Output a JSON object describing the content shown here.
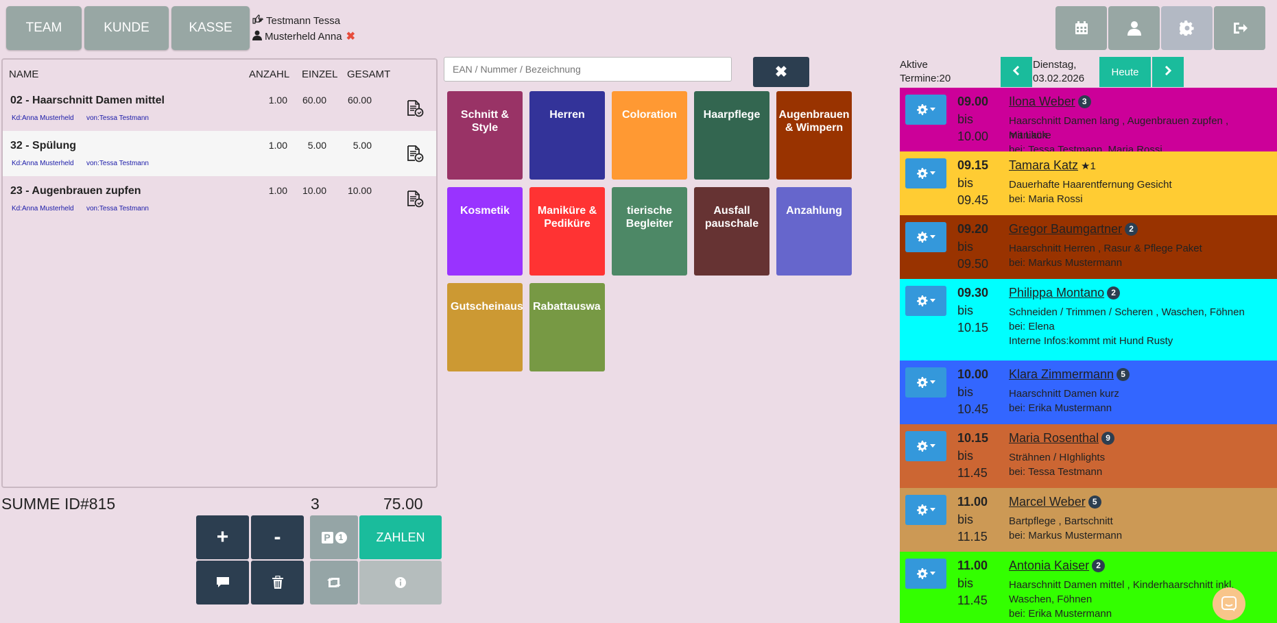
{
  "nav": {
    "team": "TEAM",
    "kunde": "KUNDE",
    "kasse": "KASSE"
  },
  "user": {
    "staff": "Testmann Tessa",
    "customer": "Musterheld Anna"
  },
  "right_icons": [
    "calendar-icon",
    "user-icon",
    "settings-icon",
    "logout-icon"
  ],
  "table": {
    "headers": {
      "name": "NAME",
      "anzahl": "ANZAHL",
      "einzel": "EINZEL",
      "gesamt": "GESAMT"
    },
    "rows": [
      {
        "name": "02 - Haarschnitt Damen mittel",
        "anzahl": "1.00",
        "einzel": "60.00",
        "gesamt": "60.00",
        "kd": "Kd:Anna Musterheld",
        "von": "von:Tessa Testmann"
      },
      {
        "name": "32 - Spülung",
        "anzahl": "1.00",
        "einzel": "5.00",
        "gesamt": "5.00",
        "kd": "Kd:Anna Musterheld",
        "von": "von:Tessa Testmann"
      },
      {
        "name": "23 - Augenbrauen zupfen",
        "anzahl": "1.00",
        "einzel": "10.00",
        "gesamt": "10.00",
        "kd": "Kd:Anna Musterheld",
        "von": "von:Tessa Testmann"
      }
    ]
  },
  "summary": {
    "label": "SUMME ID#815",
    "count": "3",
    "total": "75.00"
  },
  "actions": {
    "plus": "+",
    "minus": "-",
    "park_count": "1",
    "pay": "ZAHLEN"
  },
  "search": {
    "placeholder": "EAN / Nummer / Bezeichnung",
    "clear": "✖"
  },
  "categories": [
    {
      "label": "Schnitt & Style",
      "color": "#993366"
    },
    {
      "label": "Herren",
      "color": "#333399"
    },
    {
      "label": "Coloration",
      "color": "#ff9933"
    },
    {
      "label": "Haarpflege",
      "color": "#336650"
    },
    {
      "label": "Augenbrauen & Wimpern",
      "color": "#993300"
    },
    {
      "label": "Kosmetik",
      "color": "#9933ff"
    },
    {
      "label": "Maniküre & Pediküre",
      "color": "#ff3333"
    },
    {
      "label": "tierische Begleiter",
      "color": "#4d8866"
    },
    {
      "label": "Ausfall pauschale",
      "color": "#663333"
    },
    {
      "label": "Anzahlung",
      "color": "#6666cc"
    },
    {
      "label": "Gutscheinaus",
      "color": "#cc9933"
    },
    {
      "label": "Rabattauswa",
      "color": "#779944"
    }
  ],
  "appointments_header": {
    "aktive": "Aktive",
    "termine": "Termine:20",
    "day": "Dienstag,",
    "date": "03.02.2026",
    "heute": "Heute"
  },
  "appointments": [
    {
      "start": "09.00",
      "bis": "bis",
      "end": "10.00",
      "name": "Ilona Weber",
      "badge": "3",
      "lines": [
        "Haarschnitt Damen lang , Augenbrauen zupfen , Maniküre",
        "mit Lack",
        "bei: Tessa Testmann, Maria Rossi"
      ],
      "color": "#cc0099"
    },
    {
      "start": "09.15",
      "bis": "bis",
      "end": "09.45",
      "name": "Tamara Katz",
      "star": "★1",
      "lines": [
        "Dauerhafte Haarentfernung Gesicht",
        "bei: Maria Rossi"
      ],
      "color": "#ffcc33"
    },
    {
      "start": "09.20",
      "bis": "bis",
      "end": "09.50",
      "name": "Gregor Baumgartner",
      "badge": "2",
      "lines": [
        "Haarschnitt Herren , Rasur & Pflege Paket",
        "bei: Markus Mustermann"
      ],
      "color": "#993300"
    },
    {
      "start": "09.30",
      "bis": "bis",
      "end": "10.15",
      "name": "Philippa Montano",
      "badge": "2",
      "lines": [
        "Schneiden / Trimmen / Scheren , Waschen, Föhnen",
        "bei: Elena",
        "Interne Infos:kommt mit Hund Rusty"
      ],
      "color": "#00ffff"
    },
    {
      "start": "10.00",
      "bis": "bis",
      "end": "10.45",
      "name": "Klara Zimmermann",
      "badge": "5",
      "lines": [
        "Haarschnitt Damen kurz",
        "bei: Erika Mustermann"
      ],
      "color": "#3366ff"
    },
    {
      "start": "10.15",
      "bis": "bis",
      "end": "11.45",
      "name": "Maria Rosenthal",
      "badge": "9",
      "lines": [
        "Strähnen / HIghlights",
        "bei: Tessa Testmann"
      ],
      "color": "#cc6633"
    },
    {
      "start": "11.00",
      "bis": "bis",
      "end": "11.15",
      "name": "Marcel Weber",
      "badge": "5",
      "lines": [
        "Bartpflege , Bartschnitt",
        "bei: Markus Mustermann"
      ],
      "color": "#cc9955"
    },
    {
      "start": "11.00",
      "bis": "bis",
      "end": "11.45",
      "name": "Antonia Kaiser",
      "badge": "2",
      "lines": [
        "Haarschnitt Damen mittel , Kinderhaarschnitt inkl.",
        "Waschen, Föhnen",
        "bei: Erika Mustermann"
      ],
      "color": "#33ff00"
    }
  ]
}
